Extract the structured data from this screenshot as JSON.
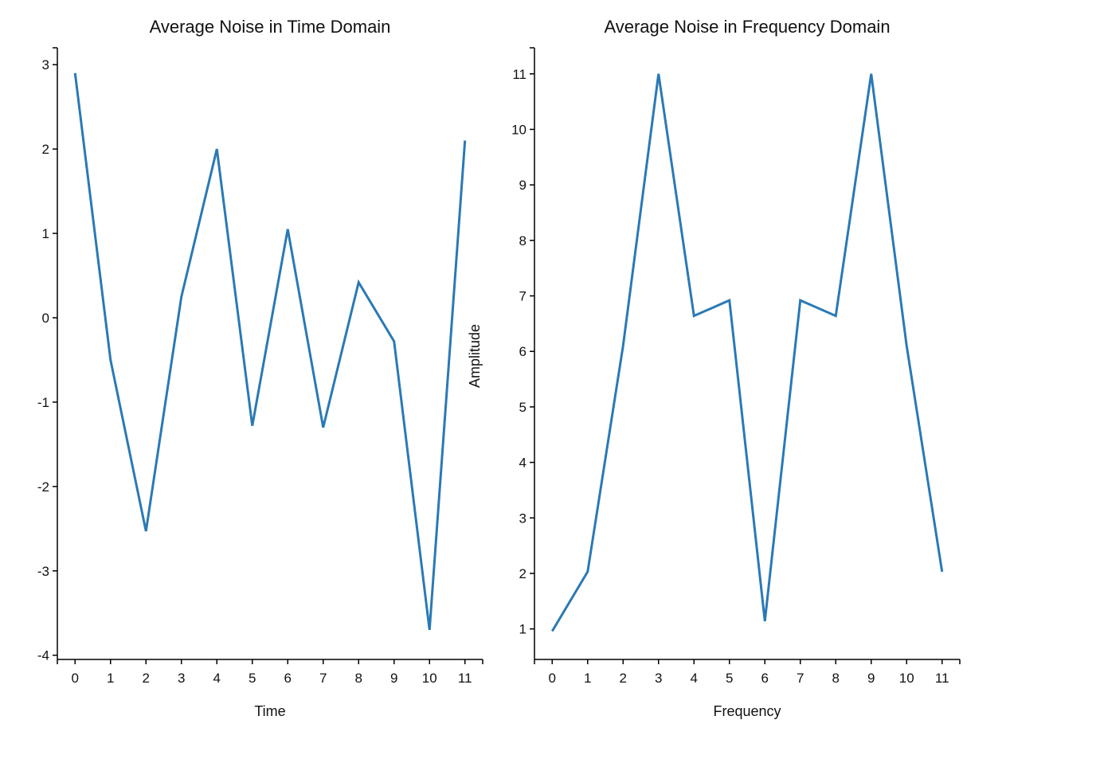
{
  "colors": {
    "series": "#2a79b5",
    "axis": "#000000"
  },
  "chart_data": [
    {
      "type": "line",
      "title": "Average Noise in Time Domain",
      "xlabel": "Time",
      "ylabel": "",
      "xlim": [
        -0.5,
        11.5
      ],
      "ylim": [
        -4.05,
        3.2
      ],
      "x_ticks": [
        0,
        1,
        2,
        3,
        4,
        5,
        6,
        7,
        8,
        9,
        10,
        11
      ],
      "y_ticks": [
        -4,
        -3,
        -2,
        -1,
        0,
        1,
        2,
        3
      ],
      "grid": false,
      "series": [
        {
          "x": [
            0,
            1,
            2,
            3,
            4,
            5,
            6,
            7,
            8,
            9,
            10,
            11
          ],
          "values": [
            2.9,
            -0.5,
            -2.53,
            0.25,
            2.0,
            -1.28,
            1.05,
            -1.3,
            0.42,
            -0.28,
            -3.7,
            2.1
          ]
        }
      ]
    },
    {
      "type": "line",
      "title": "Average Noise in Frequency Domain",
      "xlabel": "Frequency",
      "ylabel": "Amplitude",
      "xlim": [
        -0.5,
        11.5
      ],
      "ylim": [
        0.45,
        11.47
      ],
      "x_ticks": [
        0,
        1,
        2,
        3,
        4,
        5,
        6,
        7,
        8,
        9,
        10,
        11
      ],
      "y_ticks": [
        1,
        2,
        3,
        4,
        5,
        6,
        7,
        8,
        9,
        10,
        11
      ],
      "grid": false,
      "series": [
        {
          "x": [
            0,
            1,
            2,
            3,
            4,
            5,
            6,
            7,
            8,
            9,
            10,
            11
          ],
          "values": [
            0.96,
            2.03,
            6.1,
            11.0,
            6.64,
            6.92,
            1.14,
            6.92,
            6.64,
            11.0,
            6.1,
            2.03
          ]
        }
      ]
    }
  ]
}
